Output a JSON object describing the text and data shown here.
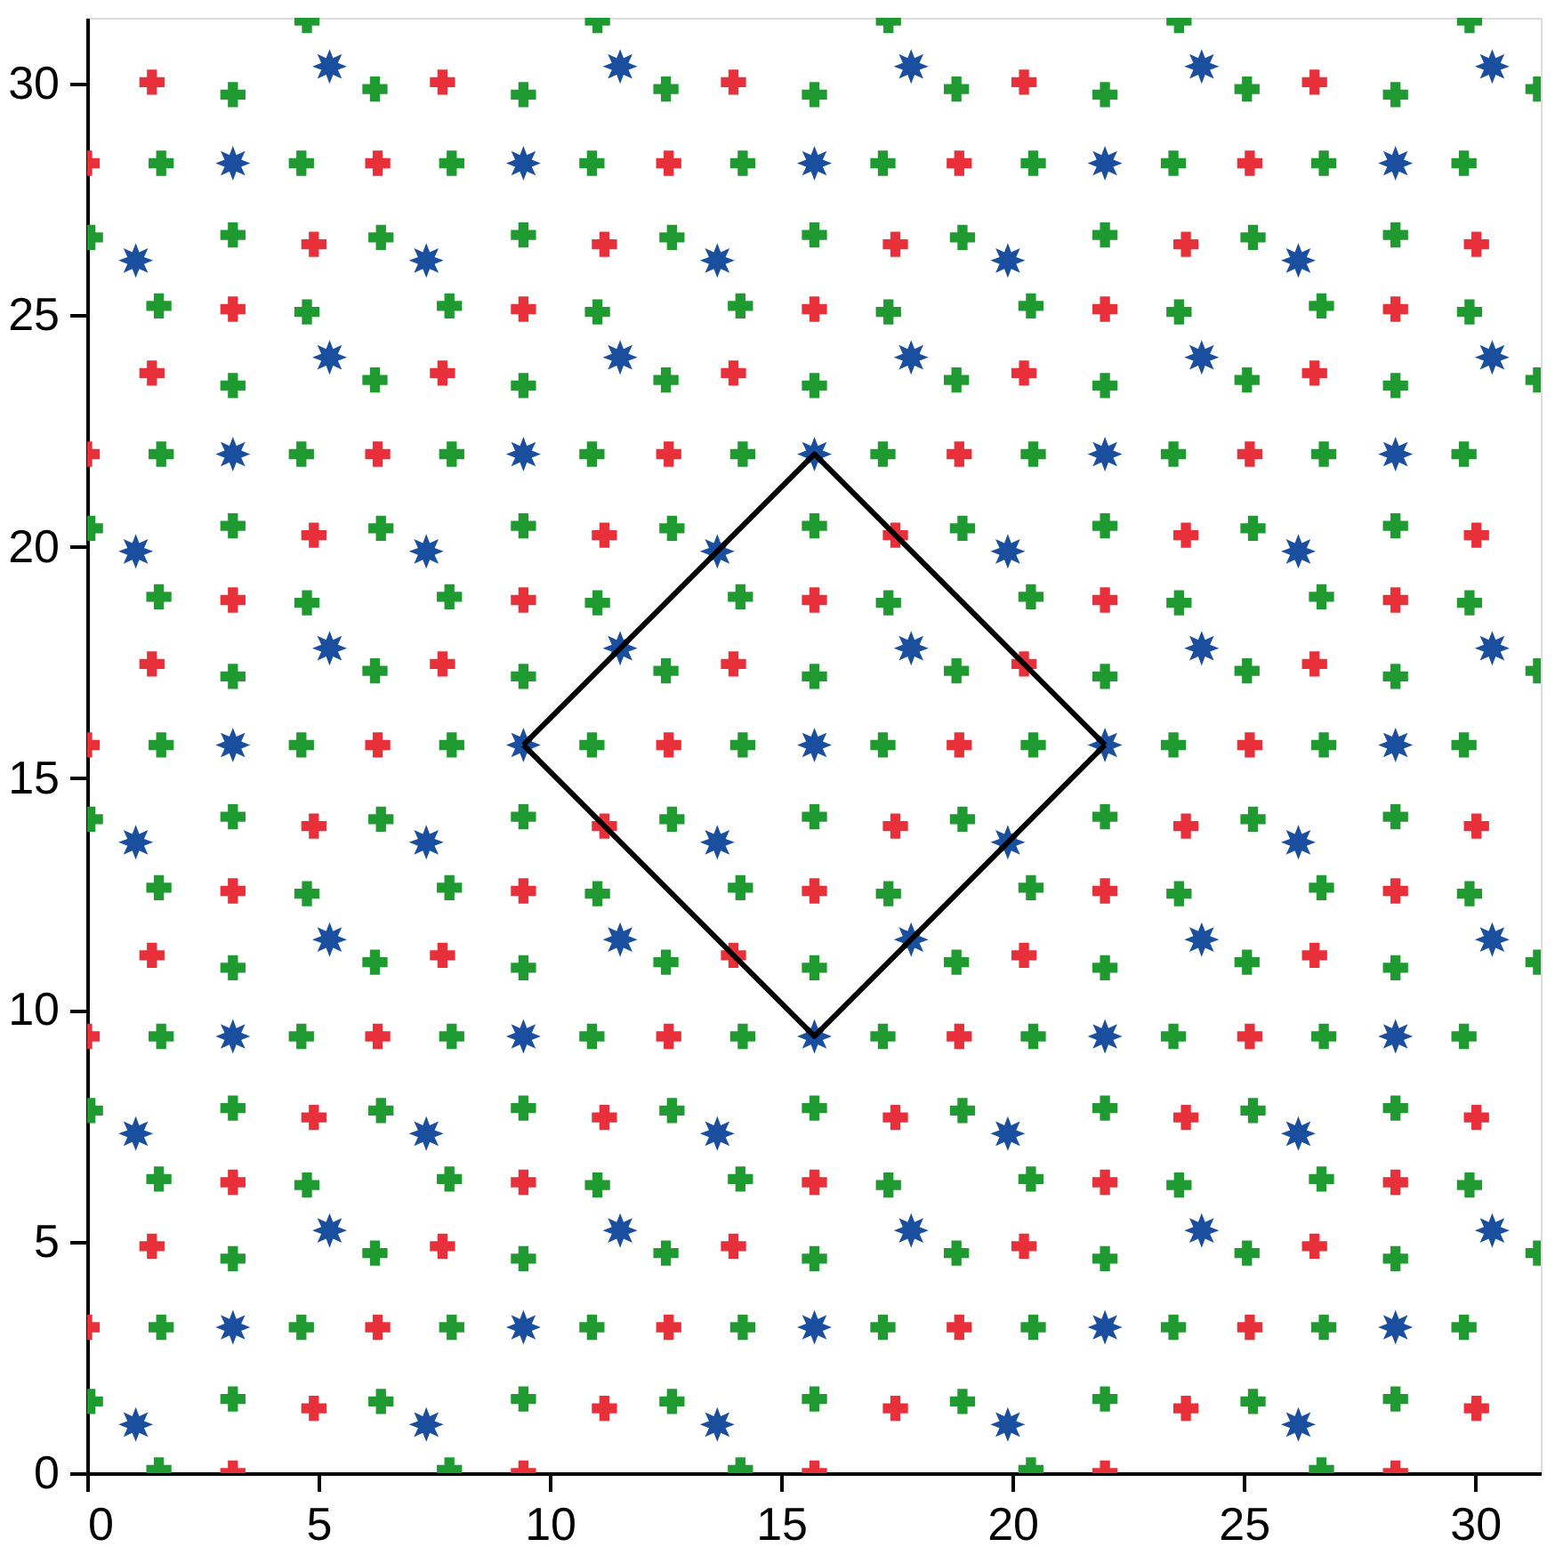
{
  "chart_data": {
    "type": "scatter",
    "xlim": [
      0,
      31.42
    ],
    "ylim": [
      0,
      31.42
    ],
    "xticks": [
      0,
      5,
      10,
      15,
      20,
      25,
      30
    ],
    "yticks": [
      0,
      5,
      10,
      15,
      20,
      25,
      30
    ],
    "grid": false,
    "series": [
      {
        "color": "#1e9a30",
        "marker": "cross",
        "x": [
          1.55,
          7.83,
          14.12,
          20.4,
          26.68,
          1.55,
          7.83,
          14.12,
          20.4,
          26.68,
          1.55,
          7.83,
          14.12,
          20.4,
          26.68,
          1.55,
          7.83,
          14.12,
          20.4,
          26.68,
          1.55,
          7.83,
          14.12,
          20.4,
          26.68,
          0.07,
          6.35,
          12.64,
          18.92,
          25.2,
          0.07,
          6.35,
          12.64,
          18.92,
          25.2,
          0.07,
          6.35,
          12.64,
          18.92,
          25.2,
          0.07,
          6.35,
          12.64,
          18.92,
          25.2,
          0.07,
          6.35,
          12.64,
          18.92,
          25.2,
          4.75,
          11.03,
          17.32,
          23.6,
          29.88,
          4.75,
          11.03,
          17.32,
          23.6,
          29.88,
          4.75,
          11.03,
          17.32,
          23.6,
          29.88,
          4.75,
          11.03,
          17.32,
          23.6,
          29.88,
          4.75,
          11.03,
          17.32,
          23.6,
          29.88,
          6.22,
          12.51,
          18.79,
          25.07,
          31.36,
          6.22,
          12.51,
          18.79,
          25.07,
          31.36,
          6.22,
          12.51,
          18.79,
          25.07,
          31.36,
          6.22,
          12.51,
          18.79,
          25.07,
          31.36,
          6.22,
          12.51,
          18.79,
          25.07,
          31.36,
          3.15,
          9.43,
          15.72,
          22.0,
          28.28,
          3.15,
          9.43,
          15.72,
          22.0,
          28.28,
          3.15,
          9.43,
          15.72,
          22.0,
          28.28,
          3.15,
          9.43,
          15.72,
          22.0,
          28.28,
          3.15,
          9.43,
          15.72,
          22.0,
          28.28,
          1.6,
          7.88,
          14.17,
          20.45,
          26.73,
          1.6,
          7.88,
          14.17,
          20.45,
          26.73,
          1.6,
          7.88,
          14.17,
          20.45,
          26.73,
          1.6,
          7.88,
          14.17,
          20.45,
          26.73,
          1.6,
          7.88,
          14.17,
          20.45,
          26.73,
          4.63,
          10.91,
          17.2,
          23.48,
          29.76,
          4.63,
          10.91,
          17.2,
          23.48,
          29.76,
          4.63,
          10.91,
          17.2,
          23.48,
          29.76,
          4.63,
          10.91,
          17.2,
          23.48,
          29.76,
          4.63,
          10.91,
          17.2,
          23.48,
          29.76,
          3.15,
          9.43,
          15.72,
          22.0,
          28.28,
          3.15,
          9.43,
          15.72,
          22.0,
          28.28,
          3.15,
          9.43,
          15.72,
          22.0,
          28.28,
          3.15,
          9.43,
          15.72,
          22.0,
          28.28,
          3.15,
          9.43,
          15.72,
          22.0,
          28.28
        ],
        "values": [
          0.07,
          0.07,
          0.07,
          0.07,
          0.07,
          6.35,
          6.35,
          6.35,
          6.35,
          6.35,
          12.64,
          12.64,
          12.64,
          12.64,
          12.64,
          18.92,
          18.92,
          18.92,
          18.92,
          18.92,
          25.2,
          25.2,
          25.2,
          25.2,
          25.2,
          1.55,
          1.55,
          1.55,
          1.55,
          1.55,
          7.83,
          7.83,
          7.83,
          7.83,
          7.83,
          14.12,
          14.12,
          14.12,
          14.12,
          14.12,
          20.4,
          20.4,
          20.4,
          20.4,
          20.4,
          26.68,
          26.68,
          26.68,
          26.68,
          26.68,
          6.22,
          6.22,
          6.22,
          6.22,
          6.22,
          12.51,
          12.51,
          12.51,
          12.51,
          12.51,
          18.79,
          18.79,
          18.79,
          18.79,
          18.79,
          25.07,
          25.07,
          25.07,
          25.07,
          25.07,
          31.36,
          31.36,
          31.36,
          31.36,
          31.36,
          4.75,
          4.75,
          4.75,
          4.75,
          4.75,
          11.03,
          11.03,
          11.03,
          11.03,
          11.03,
          17.32,
          17.32,
          17.32,
          17.32,
          17.32,
          23.6,
          23.6,
          23.6,
          23.6,
          23.6,
          29.88,
          29.88,
          29.88,
          29.88,
          29.88,
          1.6,
          1.6,
          1.6,
          1.6,
          1.6,
          7.88,
          7.88,
          7.88,
          7.88,
          7.88,
          14.17,
          14.17,
          14.17,
          14.17,
          14.17,
          20.45,
          20.45,
          20.45,
          20.45,
          20.45,
          26.73,
          26.73,
          26.73,
          26.73,
          26.73,
          3.15,
          3.15,
          3.15,
          3.15,
          3.15,
          9.43,
          9.43,
          9.43,
          9.43,
          9.43,
          15.72,
          15.72,
          15.72,
          15.72,
          15.72,
          22.0,
          22.0,
          22.0,
          22.0,
          22.0,
          28.28,
          28.28,
          28.28,
          28.28,
          28.28,
          3.15,
          3.15,
          3.15,
          3.15,
          3.15,
          9.43,
          9.43,
          9.43,
          9.43,
          9.43,
          15.72,
          15.72,
          15.72,
          15.72,
          15.72,
          22.0,
          22.0,
          22.0,
          22.0,
          22.0,
          28.28,
          28.28,
          28.28,
          28.28,
          28.28,
          4.63,
          4.63,
          4.63,
          4.63,
          4.63,
          10.91,
          10.91,
          10.91,
          10.91,
          10.91,
          17.2,
          17.2,
          17.2,
          17.2,
          17.2,
          23.48,
          23.48,
          23.48,
          23.48,
          23.48,
          29.76,
          29.76,
          29.76,
          29.76,
          29.76
        ]
      },
      {
        "color": "#e8303a",
        "marker": "cross",
        "x": [
          3.15,
          9.43,
          15.72,
          22.0,
          28.28,
          3.15,
          9.43,
          15.72,
          22.0,
          28.28,
          3.15,
          9.43,
          15.72,
          22.0,
          28.28,
          3.15,
          9.43,
          15.72,
          22.0,
          28.28,
          3.15,
          9.43,
          15.72,
          22.0,
          28.28,
          0.0,
          6.28,
          12.57,
          18.85,
          25.13,
          0.0,
          6.28,
          12.57,
          18.85,
          25.13,
          0.0,
          6.28,
          12.57,
          18.85,
          25.13,
          0.0,
          6.28,
          12.57,
          18.85,
          25.13,
          0.0,
          6.28,
          12.57,
          18.85,
          25.13,
          4.9,
          11.18,
          17.47,
          23.75,
          30.03,
          4.9,
          11.18,
          17.47,
          23.75,
          30.03,
          4.9,
          11.18,
          17.47,
          23.75,
          30.03,
          4.9,
          11.18,
          17.47,
          23.75,
          30.03,
          4.9,
          11.18,
          17.47,
          23.75,
          30.03,
          1.4,
          7.68,
          13.97,
          20.25,
          26.53,
          1.4,
          7.68,
          13.97,
          20.25,
          26.53,
          1.4,
          7.68,
          13.97,
          20.25,
          26.53,
          1.4,
          7.68,
          13.97,
          20.25,
          26.53,
          1.4,
          7.68,
          13.97,
          20.25,
          26.53
        ],
        "values": [
          0.0,
          0.0,
          0.0,
          0.0,
          0.0,
          6.28,
          6.28,
          6.28,
          6.28,
          6.28,
          12.57,
          12.57,
          12.57,
          12.57,
          12.57,
          18.85,
          18.85,
          18.85,
          18.85,
          18.85,
          25.13,
          25.13,
          25.13,
          25.13,
          25.13,
          3.15,
          3.15,
          3.15,
          3.15,
          3.15,
          9.43,
          9.43,
          9.43,
          9.43,
          9.43,
          15.72,
          15.72,
          15.72,
          15.72,
          15.72,
          22.0,
          22.0,
          22.0,
          22.0,
          22.0,
          28.28,
          28.28,
          28.28,
          28.28,
          28.28,
          1.4,
          1.4,
          1.4,
          1.4,
          1.4,
          7.68,
          7.68,
          7.68,
          7.68,
          7.68,
          13.97,
          13.97,
          13.97,
          13.97,
          13.97,
          20.25,
          20.25,
          20.25,
          20.25,
          20.25,
          26.53,
          26.53,
          26.53,
          26.53,
          26.53,
          4.9,
          4.9,
          4.9,
          4.9,
          4.9,
          11.18,
          11.18,
          11.18,
          11.18,
          11.18,
          17.47,
          17.47,
          17.47,
          17.47,
          17.47,
          23.75,
          23.75,
          23.75,
          23.75,
          23.75,
          30.03,
          30.03,
          30.03,
          30.03,
          30.03
        ]
      },
      {
        "color": "#1a4fa0",
        "marker": "star",
        "x": [
          1.05,
          7.33,
          13.62,
          19.9,
          26.18,
          1.05,
          7.33,
          13.62,
          19.9,
          26.18,
          1.05,
          7.33,
          13.62,
          19.9,
          26.18,
          1.05,
          7.33,
          13.62,
          19.9,
          26.18,
          1.05,
          7.33,
          13.62,
          19.9,
          26.18,
          3.15,
          9.43,
          15.72,
          22.0,
          28.28,
          3.15,
          9.43,
          15.72,
          22.0,
          28.28,
          3.15,
          9.43,
          15.72,
          22.0,
          28.28,
          3.15,
          9.43,
          15.72,
          22.0,
          28.28,
          3.15,
          9.43,
          15.72,
          22.0,
          28.28,
          5.24,
          11.52,
          17.81,
          24.09,
          30.37,
          5.24,
          11.52,
          17.81,
          24.09,
          30.37,
          5.24,
          11.52,
          17.81,
          24.09,
          30.37,
          5.24,
          11.52,
          17.81,
          24.09,
          30.37,
          5.24,
          11.52,
          17.81,
          24.09,
          30.37
        ],
        "values": [
          1.05,
          1.05,
          1.05,
          1.05,
          1.05,
          7.33,
          7.33,
          7.33,
          7.33,
          7.33,
          13.62,
          13.62,
          13.62,
          13.62,
          13.62,
          19.9,
          19.9,
          19.9,
          19.9,
          19.9,
          26.18,
          26.18,
          26.18,
          26.18,
          26.18,
          3.15,
          3.15,
          3.15,
          3.15,
          3.15,
          9.43,
          9.43,
          9.43,
          9.43,
          9.43,
          15.72,
          15.72,
          15.72,
          15.72,
          15.72,
          22.0,
          22.0,
          22.0,
          22.0,
          22.0,
          28.28,
          28.28,
          28.28,
          28.28,
          28.28,
          5.24,
          5.24,
          5.24,
          5.24,
          5.24,
          11.52,
          11.52,
          11.52,
          11.52,
          11.52,
          17.81,
          17.81,
          17.81,
          17.81,
          17.81,
          24.09,
          24.09,
          24.09,
          24.09,
          24.09,
          30.37,
          30.37,
          30.37,
          30.37,
          30.37
        ]
      },
      {
        "type": "line",
        "color": "#000000",
        "line_style": "solid",
        "x": [
          9.43,
          15.72,
          22.0
        ],
        "values": [
          15.72,
          22.0,
          15.72
        ]
      },
      {
        "type": "line",
        "color": "#000000",
        "line_style": "solid",
        "x": [
          9.43,
          15.72,
          22.0
        ],
        "values": [
          15.72,
          9.43,
          15.72
        ]
      }
    ]
  }
}
